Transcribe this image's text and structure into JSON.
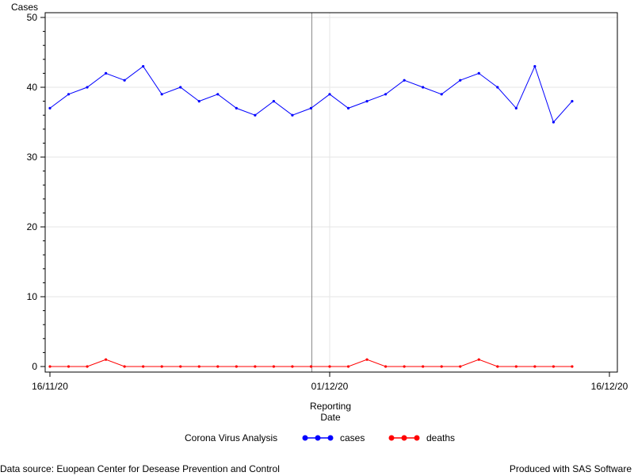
{
  "footnote_left": "Data source: Euopean Center for Desease Prevention and Control",
  "footnote_right": "Produced with SAS Software",
  "chart_data": {
    "type": "line",
    "title": "",
    "xlabel": "Reporting Date",
    "xlabel_lines": [
      "Reporting",
      "Date"
    ],
    "ylabel": "Cases",
    "x_start": "2020-11-16",
    "x_tick_labels": [
      "16/11/20",
      "01/12/20",
      "16/12/20"
    ],
    "y_ticks": [
      0,
      10,
      20,
      30,
      40,
      50
    ],
    "ylim": [
      0,
      50
    ],
    "grid": true,
    "reference_date": "01/12/20",
    "legend": {
      "title": "Corona Virus Analysis",
      "position": "bottom",
      "entries": [
        {
          "name": "cases",
          "color": "#0000ff"
        },
        {
          "name": "deaths",
          "color": "#ff0000"
        }
      ]
    },
    "series": [
      {
        "name": "cases",
        "color": "#0000ff",
        "values": [
          37,
          39,
          40,
          42,
          41,
          43,
          39,
          40,
          38,
          39,
          37,
          36,
          38,
          36,
          37,
          39,
          37,
          38,
          39,
          41,
          40,
          39,
          41,
          42,
          40,
          37,
          43,
          35,
          38
        ]
      },
      {
        "name": "deaths",
        "color": "#ff0000",
        "values": [
          0,
          0,
          0,
          1,
          0,
          0,
          0,
          0,
          0,
          0,
          0,
          0,
          0,
          0,
          0,
          0,
          0,
          1,
          0,
          0,
          0,
          0,
          0,
          1,
          0,
          0,
          0,
          0,
          0
        ]
      }
    ]
  }
}
